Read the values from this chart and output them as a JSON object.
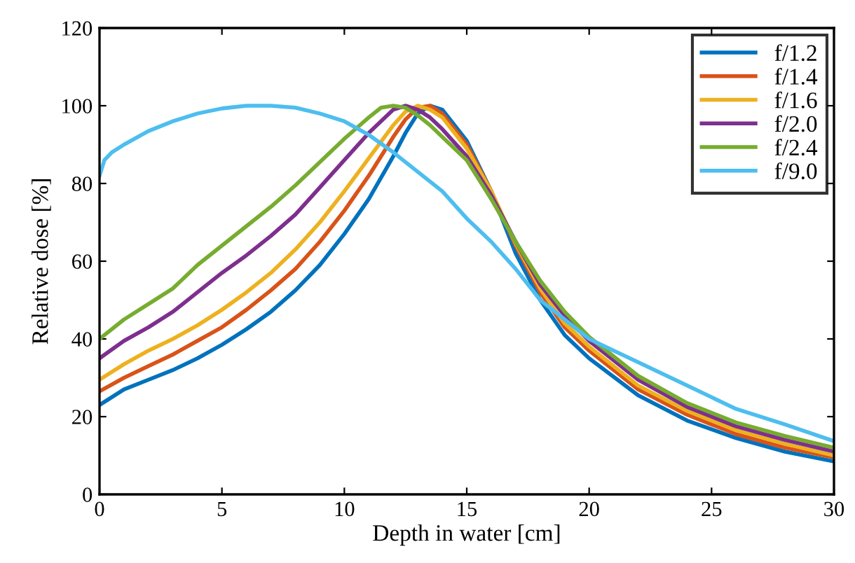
{
  "chart_data": {
    "type": "line",
    "xlabel": "Depth in water [cm]",
    "ylabel": "Relative dose [%]",
    "x": [
      0,
      1,
      2,
      3,
      4,
      5,
      6,
      7,
      8,
      9,
      10,
      11,
      12,
      12.5,
      13,
      13.5,
      14,
      15,
      16,
      17,
      18,
      19,
      20,
      22,
      24,
      26,
      28,
      30
    ],
    "xlim": [
      0,
      30
    ],
    "ylim": [
      0,
      120
    ],
    "xticks": [
      0,
      5,
      10,
      15,
      20,
      25,
      30
    ],
    "yticks": [
      0,
      20,
      40,
      60,
      80,
      100,
      120
    ],
    "grid": false,
    "legend": "top right",
    "marker": "none",
    "line_style": "solid",
    "series": [
      {
        "name": "f/1.2",
        "color": "#0072bd",
        "values": [
          23,
          27,
          29.5,
          32,
          35,
          38.5,
          42.5,
          47,
          52.5,
          59,
          67,
          76,
          87,
          93,
          98,
          100,
          99,
          91,
          78,
          62,
          50,
          41,
          35,
          25.5,
          19,
          14.5,
          11,
          8.5
        ]
      },
      {
        "name": "f/1.4",
        "color": "#d95319",
        "values": [
          26.5,
          30,
          33,
          36,
          39.5,
          43,
          47.5,
          52.5,
          58,
          65,
          73,
          82,
          92,
          96.5,
          99.5,
          100,
          98,
          90,
          78,
          64,
          52,
          43,
          37,
          27,
          20.5,
          15.5,
          12,
          9.5
        ]
      },
      {
        "name": "f/1.6",
        "color": "#edb120",
        "values": [
          29.5,
          33.5,
          37,
          40,
          43.5,
          47.5,
          52,
          57,
          63,
          70,
          78,
          86.5,
          95,
          98.5,
          100,
          99,
          97,
          89,
          78,
          64.5,
          53,
          44,
          38,
          28,
          21.5,
          16.5,
          13,
          10
        ]
      },
      {
        "name": "f/2.0",
        "color": "#7e2f8e",
        "values": [
          35,
          39.5,
          43,
          47,
          52,
          57,
          61.5,
          66.5,
          72,
          79,
          86,
          93,
          99,
          100,
          99,
          97,
          94,
          87,
          77,
          65,
          54,
          46,
          39.5,
          29.5,
          22.5,
          17.5,
          14,
          11
        ]
      },
      {
        "name": "f/2.4",
        "color": "#77ac30",
        "x": [
          0,
          1,
          2,
          3,
          4,
          5,
          6,
          7,
          8,
          9,
          10,
          11,
          11.5,
          12,
          12.5,
          13,
          13.5,
          14,
          15,
          16,
          17,
          18,
          19,
          20,
          22,
          24,
          26,
          28,
          30
        ],
        "values": [
          40,
          45,
          49,
          53,
          59,
          64,
          69,
          74,
          79.5,
          85.5,
          91.5,
          97,
          99.5,
          100,
          99.5,
          97.5,
          95,
          92,
          86,
          76,
          65,
          55,
          47,
          40.5,
          30.5,
          23.5,
          18.5,
          15,
          12
        ]
      },
      {
        "name": "f/9.0",
        "color": "#4dbeee",
        "x": [
          0,
          0.2,
          0.5,
          1,
          2,
          3,
          4,
          5,
          6,
          7,
          8,
          9,
          10,
          11,
          12,
          13,
          14,
          15,
          16,
          17,
          18,
          19,
          20,
          21,
          22,
          24,
          26,
          28,
          30
        ],
        "values": [
          82,
          86,
          88,
          90,
          93.5,
          96,
          98,
          99.3,
          100,
          100,
          99.5,
          98,
          96,
          92.5,
          88,
          83,
          78,
          71,
          65,
          58,
          50,
          45,
          40,
          37,
          34,
          28,
          22,
          18,
          13.7
        ]
      }
    ]
  }
}
